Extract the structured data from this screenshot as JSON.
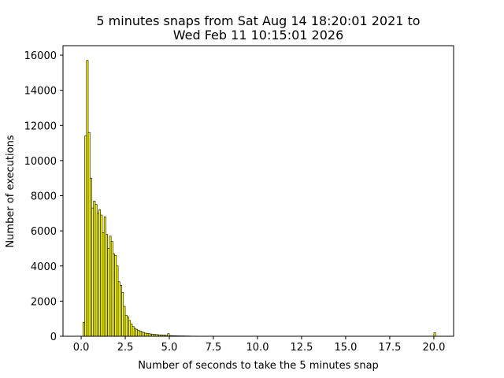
{
  "chart_data": {
    "type": "histogram",
    "title": [
      "5 minutes snaps from Sat Aug 14 18:20:01 2021 to",
      "Wed Feb 11 10:15:01 2026"
    ],
    "xlabel": "Number of seconds to take the 5 minutes snap",
    "ylabel": "Number of executions",
    "color": "#ffff00",
    "edgecolor": "#000000",
    "bins": [
      0.1,
      0.2,
      0.3,
      0.4,
      0.5,
      0.6,
      0.7,
      0.8,
      0.9,
      1.0,
      1.1,
      1.2,
      1.3,
      1.4,
      1.5,
      1.6,
      1.7,
      1.8,
      1.9,
      2.0,
      2.1,
      2.2,
      2.3,
      2.4,
      2.5,
      2.6,
      2.7,
      2.8,
      2.9,
      3.0,
      3.1,
      3.2,
      3.3,
      3.4,
      3.5,
      3.6,
      3.7,
      3.8,
      3.9,
      4.0,
      4.1,
      4.2,
      4.3,
      4.4,
      4.5,
      4.6,
      4.7,
      4.8,
      4.9,
      5.0,
      5.1,
      5.2,
      5.3,
      5.4,
      5.5,
      5.6,
      5.7,
      5.8,
      5.9,
      6.0,
      6.1,
      6.2,
      6.3,
      6.4,
      6.5,
      6.6,
      20.0,
      20.1
    ],
    "counts": [
      800,
      11400,
      15700,
      11600,
      9000,
      7300,
      7700,
      7500,
      7000,
      7200,
      6900,
      5900,
      6800,
      5800,
      5000,
      5700,
      5400,
      4700,
      4600,
      4000,
      3100,
      2900,
      2500,
      1700,
      1200,
      1100,
      900,
      700,
      550,
      450,
      400,
      350,
      300,
      250,
      220,
      180,
      160,
      150,
      130,
      120,
      110,
      100,
      90,
      80,
      80,
      70,
      60,
      50,
      150,
      40,
      35,
      30,
      30,
      25,
      25,
      20,
      20,
      20,
      15,
      15,
      15,
      10,
      10,
      10,
      10,
      0,
      200
    ],
    "xlim": [
      -1.03,
      21.12
    ],
    "ylim": [
      0,
      16540
    ],
    "xticks": [
      {
        "value": 0,
        "label": "0.0"
      },
      2.5,
      {
        "value": 5,
        "label": "5.0"
      },
      7.5,
      {
        "value": 10,
        "label": "10.0"
      },
      12.5,
      {
        "value": 15,
        "label": "15.0"
      },
      17.5,
      {
        "value": 20,
        "label": "20.0"
      }
    ],
    "yticks": [
      0,
      2000,
      4000,
      6000,
      8000,
      10000,
      12000,
      14000,
      16000
    ]
  }
}
